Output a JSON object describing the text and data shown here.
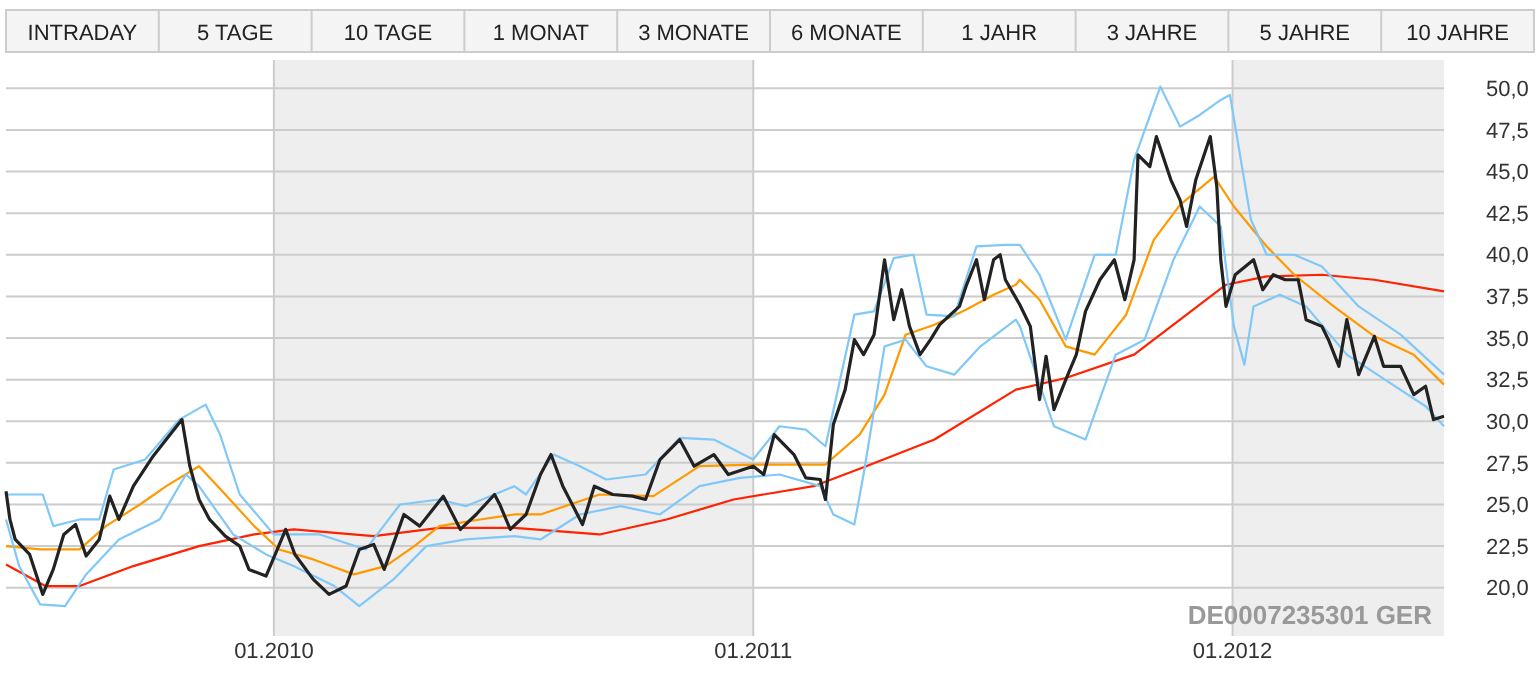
{
  "chart_data": [
    {
      "type": "other",
      "categories": [
        "INTRADAY",
        "5 TAGE",
        "10 TAGE",
        "1 MONAT",
        "3 MONATE",
        "6 MONATE",
        "1 JAHR",
        "3 JAHRE",
        "5 JAHRE",
        "10 JAHRE"
      ]
    },
    {
      "type": "line",
      "xlim": [
        "2009-06-11",
        "2012-06-10"
      ],
      "ylim": [
        17.1,
        51.7
      ],
      "xticks": [
        {
          "value": "2010-01-01",
          "label": "01.2010"
        },
        {
          "value": "2011-01-01",
          "label": "01.2011"
        },
        {
          "value": "2012-01-01",
          "label": "01.2012"
        }
      ],
      "yticks": [
        {
          "value": 20,
          "label": "20,0"
        },
        {
          "value": 22.5,
          "label": "22,5"
        },
        {
          "value": 25,
          "label": "25,0"
        },
        {
          "value": 27.5,
          "label": "27,5"
        },
        {
          "value": 30,
          "label": "30,0"
        },
        {
          "value": 32.5,
          "label": "32,5"
        },
        {
          "value": 35,
          "label": "35,0"
        },
        {
          "value": 37.5,
          "label": "37,5"
        },
        {
          "value": 40,
          "label": "40,0"
        },
        {
          "value": 42.5,
          "label": "42,5"
        },
        {
          "value": 45,
          "label": "45,0"
        },
        {
          "value": 47.5,
          "label": "47,5"
        },
        {
          "value": 50,
          "label": "50,0"
        }
      ],
      "grid": true,
      "bands": [
        {
          "axis": "x",
          "from": "2010-01-01",
          "to": "2011-01-01",
          "color": "#eeeeee"
        },
        {
          "axis": "x",
          "from": "2012-01-01",
          "to": "2012-06-10",
          "color": "#eeeeee"
        }
      ],
      "annotations": [
        "DE0007235301 GER"
      ],
      "series": [
        {
          "color": "#ff2200",
          "x": [
            "2009-06-11",
            "2009-07-11",
            "2009-08-06",
            "2009-09-16",
            "2009-11-05",
            "2009-12-17",
            "2010-01-16",
            "2010-03-18",
            "2010-05-07",
            "2010-07-03",
            "2010-09-06",
            "2010-10-27",
            "2010-12-17",
            "2011-02-16",
            "2011-03-28",
            "2011-05-19",
            "2011-07-20",
            "2011-08-27",
            "2011-10-18",
            "2011-11-27",
            "2011-12-27",
            "2012-01-27",
            "2012-03-09",
            "2012-04-18",
            "2012-06-10"
          ],
          "values": [
            21.4,
            20.1,
            20.1,
            21.3,
            22.5,
            23.2,
            23.5,
            23.1,
            23.6,
            23.6,
            23.2,
            24.1,
            25.3,
            26.1,
            27.3,
            28.9,
            31.9,
            32.6,
            34.0,
            36.4,
            38.2,
            38.7,
            38.8,
            38.5,
            37.8
          ]
        },
        {
          "color": "#ff9900",
          "x": [
            "2009-06-11",
            "2009-07-07",
            "2009-08-06",
            "2009-08-26",
            "2009-09-21",
            "2009-10-11",
            "2009-11-05",
            "2009-11-25",
            "2009-12-17",
            "2010-01-05",
            "2010-01-31",
            "2010-03-03",
            "2010-03-27",
            "2010-04-18",
            "2010-05-07",
            "2010-06-07",
            "2010-07-03",
            "2010-07-23",
            "2010-09-06",
            "2010-10-17",
            "2010-11-21",
            "2011-01-01",
            "2011-02-01",
            "2011-02-25",
            "2011-03-23",
            "2011-04-11",
            "2011-04-27",
            "2011-05-19",
            "2011-06-12",
            "2011-07-03",
            "2011-07-20",
            "2011-07-23",
            "2011-08-07",
            "2011-08-27",
            "2011-09-18",
            "2011-10-12",
            "2011-11-02",
            "2011-11-22",
            "2011-12-18",
            "2012-01-02",
            "2012-01-27",
            "2012-02-17",
            "2012-03-18",
            "2012-04-18",
            "2012-05-18",
            "2012-06-10"
          ],
          "values": [
            22.5,
            22.3,
            22.3,
            23.7,
            25.0,
            26.1,
            27.3,
            25.6,
            23.7,
            22.3,
            21.7,
            20.8,
            21.3,
            22.5,
            23.7,
            24.1,
            24.4,
            24.4,
            25.6,
            25.5,
            27.3,
            27.4,
            27.4,
            27.4,
            29.2,
            31.6,
            35.2,
            35.8,
            36.7,
            37.6,
            38.2,
            38.5,
            37.3,
            34.5,
            34.0,
            36.4,
            40.9,
            43.0,
            44.7,
            42.9,
            40.5,
            38.8,
            36.9,
            35.1,
            34.0,
            32.2
          ]
        },
        {
          "color": "#80c8f8",
          "x": [
            "2009-06-11",
            "2009-07-02",
            "2009-07-09",
            "2009-07-17",
            "2009-08-06",
            "2009-08-21",
            "2009-09-01",
            "2009-09-25",
            "2009-10-21",
            "2009-11-10",
            "2009-11-21",
            "2009-12-06",
            "2010-01-01",
            "2010-02-05",
            "2010-03-12",
            "2010-04-07",
            "2010-05-07",
            "2010-05-27",
            "2010-06-18",
            "2010-07-03",
            "2010-07-12",
            "2010-08-02",
            "2010-08-22",
            "2010-09-11",
            "2010-10-11",
            "2010-11-06",
            "2010-12-02",
            "2011-01-01",
            "2011-01-21",
            "2011-02-10",
            "2011-02-25",
            "2011-03-19",
            "2011-04-03",
            "2011-04-18",
            "2011-05-03",
            "2011-05-13",
            "2011-06-03",
            "2011-06-20",
            "2011-07-12",
            "2011-07-23",
            "2011-08-07",
            "2011-08-27",
            "2011-09-18",
            "2011-10-04",
            "2011-10-18",
            "2011-11-07",
            "2011-11-22",
            "2011-12-07",
            "2011-12-23",
            "2011-12-30",
            "2012-01-15",
            "2012-01-27",
            "2012-02-17",
            "2012-03-09",
            "2012-04-06",
            "2012-05-08",
            "2012-06-10"
          ],
          "values": [
            25.6,
            25.6,
            25.6,
            23.7,
            24.1,
            24.1,
            27.1,
            27.7,
            30.1,
            31.0,
            29.2,
            25.6,
            23.2,
            23.2,
            22.3,
            25.0,
            25.3,
            24.9,
            25.6,
            26.1,
            25.6,
            28.0,
            27.3,
            26.5,
            26.8,
            29.0,
            28.9,
            27.7,
            29.7,
            29.5,
            28.5,
            36.4,
            36.6,
            39.8,
            40.0,
            36.4,
            36.3,
            40.5,
            40.6,
            40.6,
            38.8,
            34.9,
            40.0,
            40.0,
            45.7,
            50.1,
            47.7,
            48.4,
            49.3,
            49.6,
            42.1,
            40.0,
            40.0,
            39.3,
            36.9,
            35.2,
            32.8
          ]
        },
        {
          "color": "#80c8f8",
          "x": [
            "2009-06-11",
            "2009-06-21",
            "2009-07-07",
            "2009-07-26",
            "2009-08-11",
            "2009-09-05",
            "2009-10-06",
            "2009-10-26",
            "2009-11-05",
            "2009-12-01",
            "2009-12-26",
            "2010-01-16",
            "2010-02-16",
            "2010-03-07",
            "2010-04-02",
            "2010-04-27",
            "2010-05-27",
            "2010-07-03",
            "2010-07-23",
            "2010-08-22",
            "2010-09-22",
            "2010-10-22",
            "2010-11-21",
            "2010-12-22",
            "2011-01-21",
            "2011-02-21",
            "2011-03-03",
            "2011-03-19",
            "2011-03-26",
            "2011-04-11",
            "2011-04-27",
            "2011-05-13",
            "2011-06-03",
            "2011-06-23",
            "2011-07-20",
            "2011-07-23",
            "2011-08-18",
            "2011-09-11",
            "2011-10-04",
            "2011-10-26",
            "2011-11-17",
            "2011-12-07",
            "2011-12-23",
            "2012-01-02",
            "2012-01-10",
            "2012-01-17",
            "2012-02-06",
            "2012-02-26",
            "2012-03-28",
            "2012-04-26",
            "2012-05-27",
            "2012-06-10"
          ],
          "values": [
            24.1,
            21.3,
            19.0,
            18.9,
            20.8,
            22.9,
            24.1,
            26.8,
            26.1,
            23.2,
            22.0,
            21.3,
            20.1,
            18.9,
            20.5,
            22.5,
            22.9,
            23.1,
            22.9,
            24.4,
            24.9,
            24.4,
            26.1,
            26.6,
            26.8,
            26.1,
            24.4,
            23.8,
            26.8,
            34.5,
            34.9,
            33.3,
            32.8,
            34.5,
            36.1,
            35.7,
            29.7,
            28.9,
            34.0,
            34.9,
            39.7,
            42.9,
            41.7,
            35.7,
            33.4,
            36.9,
            37.6,
            36.9,
            34.0,
            32.5,
            30.9,
            29.7
          ]
        },
        {
          "color": "#222222",
          "x": [
            "2009-06-11",
            "2009-06-14",
            "2009-06-18",
            "2009-06-29",
            "2009-07-09",
            "2009-07-17",
            "2009-07-25",
            "2009-08-03",
            "2009-08-11",
            "2009-08-21",
            "2009-08-29",
            "2009-09-05",
            "2009-09-16",
            "2009-10-01",
            "2009-10-11",
            "2009-10-23",
            "2009-10-29",
            "2009-11-05",
            "2009-11-13",
            "2009-11-25",
            "2009-12-06",
            "2009-12-13",
            "2009-12-26",
            "2010-01-10",
            "2010-01-17",
            "2010-01-31",
            "2010-02-12",
            "2010-02-25",
            "2010-03-07",
            "2010-03-18",
            "2010-03-26",
            "2010-04-10",
            "2010-04-22",
            "2010-05-10",
            "2010-05-23",
            "2010-06-04",
            "2010-06-18",
            "2010-06-22",
            "2010-06-30",
            "2010-07-12",
            "2010-07-23",
            "2010-07-31",
            "2010-08-09",
            "2010-08-24",
            "2010-09-02",
            "2010-09-16",
            "2010-10-01",
            "2010-10-11",
            "2010-10-22",
            "2010-11-06",
            "2010-11-17",
            "2010-12-02",
            "2010-12-13",
            "2011-01-01",
            "2011-01-09",
            "2011-01-17",
            "2011-02-01",
            "2011-02-10",
            "2011-02-21",
            "2011-02-25",
            "2011-03-03",
            "2011-03-12",
            "2011-03-19",
            "2011-03-26",
            "2011-04-03",
            "2011-04-11",
            "2011-04-18",
            "2011-04-24",
            "2011-04-30",
            "2011-05-08",
            "2011-05-16",
            "2011-05-23",
            "2011-06-07",
            "2011-06-12",
            "2011-06-20",
            "2011-06-26",
            "2011-07-03",
            "2011-07-08",
            "2011-07-12",
            "2011-07-23",
            "2011-07-31",
            "2011-08-07",
            "2011-08-12",
            "2011-08-18",
            "2011-08-27",
            "2011-09-04",
            "2011-09-11",
            "2011-09-22",
            "2011-10-03",
            "2011-10-11",
            "2011-10-18",
            "2011-10-21",
            "2011-10-30",
            "2011-11-04",
            "2011-11-15",
            "2011-11-22",
            "2011-11-27",
            "2011-12-04",
            "2011-12-15",
            "2011-12-20",
            "2011-12-23",
            "2011-12-27",
            "2012-01-03",
            "2012-01-17",
            "2012-01-24",
            "2012-02-01",
            "2012-02-10",
            "2012-02-20",
            "2012-02-26",
            "2012-03-09",
            "2012-03-14",
            "2012-03-22",
            "2012-03-28",
            "2012-04-06",
            "2012-04-18",
            "2012-04-25",
            "2012-05-08",
            "2012-05-18",
            "2012-05-27",
            "2012-06-02",
            "2012-06-10"
          ],
          "values": [
            25.8,
            24.1,
            22.9,
            22.0,
            19.6,
            21.1,
            23.2,
            23.8,
            21.9,
            22.9,
            25.5,
            24.1,
            26.1,
            27.9,
            28.9,
            30.1,
            27.3,
            25.3,
            24.1,
            23.1,
            22.5,
            21.1,
            20.7,
            23.5,
            22.0,
            20.5,
            19.6,
            20.1,
            22.3,
            22.6,
            21.1,
            24.4,
            23.7,
            25.5,
            23.5,
            24.4,
            25.6,
            25.0,
            23.5,
            24.4,
            26.8,
            28.0,
            26.1,
            23.8,
            26.1,
            25.6,
            25.5,
            25.3,
            27.7,
            28.9,
            27.3,
            28.0,
            26.8,
            27.3,
            26.8,
            29.2,
            28.0,
            26.6,
            26.5,
            25.3,
            29.8,
            31.9,
            34.9,
            34.0,
            35.2,
            39.7,
            36.1,
            37.9,
            35.7,
            34.0,
            34.9,
            35.8,
            36.9,
            38.1,
            39.7,
            37.3,
            39.7,
            40.0,
            38.5,
            37.0,
            35.7,
            31.3,
            33.9,
            30.7,
            32.5,
            34.0,
            36.6,
            38.5,
            39.7,
            37.3,
            39.7,
            46.0,
            45.3,
            47.1,
            44.5,
            43.3,
            41.7,
            44.5,
            47.1,
            44.1,
            39.7,
            36.9,
            38.8,
            39.7,
            37.9,
            38.8,
            38.5,
            38.5,
            36.1,
            35.7,
            34.9,
            33.3,
            36.1,
            32.8,
            35.1,
            33.3,
            33.3,
            31.6,
            32.1,
            30.1,
            30.3
          ]
        }
      ]
    }
  ]
}
